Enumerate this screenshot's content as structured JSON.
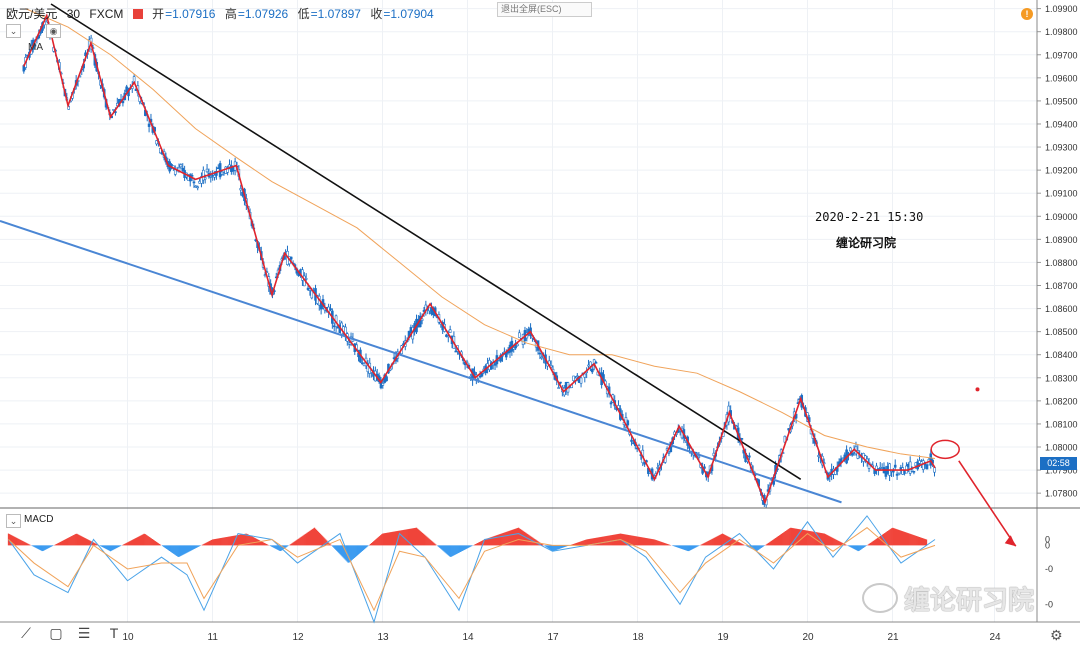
{
  "header": {
    "symbol": "欧元/美元",
    "interval": "30",
    "source": "FXCM",
    "open_label": "开",
    "open": "=1.07916",
    "high_label": "高",
    "high": "=1.07926",
    "low_label": "低",
    "low": "=1.07897",
    "close_label": "收",
    "close": "=1.07904"
  },
  "overlay": {
    "ma_label": "MA",
    "exit_fullscreen": "退出全屏(ESC)",
    "alert_badge": "!",
    "last_price_tag": "02:58"
  },
  "annotations": {
    "datetime": "2020-2-21 15:30",
    "author": "缠论研习院"
  },
  "macd": {
    "label": "MACD"
  },
  "watermark": "缠论研习院",
  "colors": {
    "bull_candle": "#1c6fc4",
    "bear_candle": "#1c6fc4",
    "zigzag": "#e0242c",
    "trendline_upper": "#111111",
    "trendline_lower": "#4a86d4",
    "ma": "#f0a35a",
    "macd_hist_pos": "#f0443a",
    "macd_hist_neg": "#3a9af0",
    "macd_line": "#4aa3e8",
    "signal_line": "#f0a35a"
  },
  "chart_data": {
    "type": "line",
    "price_axis": {
      "ticks": [
        "1.09900",
        "1.09800",
        "1.09700",
        "1.09600",
        "1.09500",
        "1.09400",
        "1.09300",
        "1.09200",
        "1.09100",
        "1.09000",
        "1.08900",
        "1.08800",
        "1.08700",
        "1.08600",
        "1.08500",
        "1.08400",
        "1.08300",
        "1.08200",
        "1.08100",
        "1.08000",
        "1.07900",
        "1.07800"
      ],
      "ylim": [
        1.0774,
        1.0992
      ]
    },
    "time_axis": {
      "ticks": [
        "10",
        "11",
        "12",
        "13",
        "14",
        "17",
        "18",
        "19",
        "20",
        "21",
        "24"
      ],
      "xlim": [
        0,
        12.2
      ],
      "tick_positions": [
        1.5,
        2.5,
        3.5,
        4.5,
        5.5,
        6.5,
        7.5,
        8.5,
        9.5,
        10.5,
        11.7
      ]
    },
    "macd_axis": {
      "ticks": [
        "0",
        "0",
        "-0",
        "-0"
      ],
      "ylim": [
        -0.0013,
        0.0006
      ]
    },
    "zigzag": {
      "x": [
        0.28,
        0.55,
        0.8,
        1.07,
        1.3,
        1.58,
        1.98,
        2.3,
        2.78,
        3.2,
        3.35,
        4.48,
        5.06,
        5.59,
        6.24,
        6.63,
        6.99,
        7.7,
        7.99,
        8.33,
        8.58,
        9.0,
        9.42,
        9.74,
        10.05,
        10.3,
        10.68,
        10.95,
        11.0
      ],
      "y": [
        1.0965,
        1.0987,
        1.0948,
        1.0975,
        1.0943,
        1.0958,
        1.0922,
        1.0916,
        1.0922,
        1.0866,
        1.0884,
        1.0828,
        1.0862,
        1.083,
        1.085,
        1.0824,
        1.0836,
        1.0786,
        1.0809,
        1.0787,
        1.0815,
        1.0776,
        1.0821,
        1.0787,
        1.0799,
        1.079,
        1.079,
        1.0794,
        1.0791
      ]
    },
    "trendline_upper": {
      "x": [
        0.6,
        9.42
      ],
      "y": [
        1.0992,
        1.0786
      ]
    },
    "trendline_lower": {
      "x": [
        0.0,
        9.9
      ],
      "y": [
        1.0898,
        1.0776
      ]
    },
    "ma": {
      "x": [
        0.3,
        0.8,
        1.3,
        1.8,
        2.3,
        2.8,
        3.2,
        3.7,
        4.2,
        4.7,
        5.2,
        5.7,
        6.2,
        6.7,
        7.2,
        7.7,
        8.2,
        8.7,
        9.2,
        9.7,
        10.2,
        10.6,
        11.0
      ],
      "y": [
        1.099,
        1.0982,
        1.097,
        1.0955,
        1.0938,
        1.0925,
        1.0915,
        1.0905,
        1.0895,
        1.088,
        1.0865,
        1.0853,
        1.0845,
        1.084,
        1.084,
        1.0835,
        1.0832,
        1.0824,
        1.0815,
        1.0805,
        1.08,
        1.0797,
        1.0795
      ]
    },
    "macd_hist": {
      "x": [
        0.1,
        0.5,
        0.9,
        1.3,
        1.7,
        2.1,
        2.5,
        2.9,
        3.3,
        3.7,
        4.1,
        4.5,
        4.9,
        5.3,
        5.7,
        6.1,
        6.5,
        6.9,
        7.3,
        7.7,
        8.1,
        8.5,
        8.9,
        9.3,
        9.7,
        10.1,
        10.5,
        10.9
      ],
      "y": [
        0.0002,
        -0.0001,
        0.0002,
        -0.0001,
        0.0002,
        -0.0002,
        0.0001,
        0.0002,
        -0.0001,
        0.0003,
        -0.0003,
        0.0002,
        0.0003,
        -0.0002,
        0.0001,
        0.0003,
        -0.0001,
        0.0001,
        0.0002,
        0.0001,
        -0.0001,
        0.0002,
        -0.0001,
        0.0003,
        0.0002,
        -0.0001,
        0.0003,
        0.0001
      ]
    },
    "macd_line": {
      "x": [
        0.1,
        0.4,
        0.8,
        1.1,
        1.5,
        1.9,
        2.2,
        2.4,
        2.8,
        3.2,
        3.5,
        4.0,
        4.4,
        4.7,
        5.0,
        5.4,
        5.7,
        6.1,
        6.5,
        6.9,
        7.3,
        7.6,
        8.0,
        8.3,
        8.7,
        9.1,
        9.5,
        9.8,
        10.2,
        10.6,
        11.0
      ],
      "y": [
        0.0001,
        -0.0005,
        -0.0008,
        0.0001,
        -0.0006,
        -0.0002,
        -0.0005,
        -0.0011,
        0.0002,
        0.0001,
        -0.0003,
        0.0002,
        -0.0013,
        0.0002,
        -0.0002,
        -0.0011,
        0.0001,
        0.0002,
        -0.0001,
        0.0,
        0.0001,
        -0.0002,
        -0.001,
        -0.0002,
        0.0002,
        -0.0004,
        0.0004,
        -0.0002,
        0.0005,
        -0.0003,
        0.0001
      ]
    },
    "signal_line": {
      "x": [
        0.1,
        0.4,
        0.8,
        1.1,
        1.5,
        1.9,
        2.2,
        2.4,
        2.8,
        3.2,
        3.5,
        4.0,
        4.4,
        4.7,
        5.0,
        5.4,
        5.7,
        6.1,
        6.5,
        6.9,
        7.3,
        7.6,
        8.0,
        8.3,
        8.7,
        9.1,
        9.5,
        9.8,
        10.2,
        10.6,
        11.0
      ],
      "y": [
        0.0001,
        -0.0003,
        -0.0007,
        0.0,
        -0.0004,
        -0.0003,
        -0.0003,
        -0.0009,
        0.0,
        0.0001,
        -0.0002,
        0.0001,
        -0.0011,
        -0.0001,
        -0.0002,
        -0.0009,
        -0.0001,
        0.0001,
        0.0,
        0.0,
        0.0001,
        -0.0001,
        -0.0008,
        -0.0003,
        0.0001,
        -0.0003,
        0.0002,
        -0.0001,
        0.0003,
        -0.0002,
        0.0
      ]
    },
    "candles_approx": {
      "note_none": "",
      "x": [
        0.3,
        0.55,
        0.8,
        1.07,
        1.3,
        1.58,
        1.98,
        2.3,
        2.78,
        3.2,
        3.35,
        4.48,
        5.06,
        5.59,
        6.24,
        6.63,
        6.99,
        7.7,
        7.99,
        8.33,
        8.58,
        9.0,
        9.42,
        9.74,
        10.05,
        10.3,
        10.68,
        10.95,
        11.0
      ],
      "y": [
        1.0965,
        1.0987,
        1.0948,
        1.0975,
        1.0943,
        1.0958,
        1.0922,
        1.0916,
        1.0922,
        1.0866,
        1.0884,
        1.0828,
        1.0862,
        1.083,
        1.085,
        1.0824,
        1.0836,
        1.0786,
        1.0809,
        1.0787,
        1.0815,
        1.0776,
        1.0821,
        1.0787,
        1.0799,
        1.079,
        1.079,
        1.0794,
        1.0791
      ]
    },
    "highlight_circle": {
      "x": 11.12,
      "y": 1.0799
    },
    "forecast_arrow": {
      "x": [
        11.28,
        11.95
      ],
      "y": [
        1.0794,
        1.0757
      ]
    },
    "dot": {
      "x": 11.5,
      "y": 1.0825
    }
  }
}
